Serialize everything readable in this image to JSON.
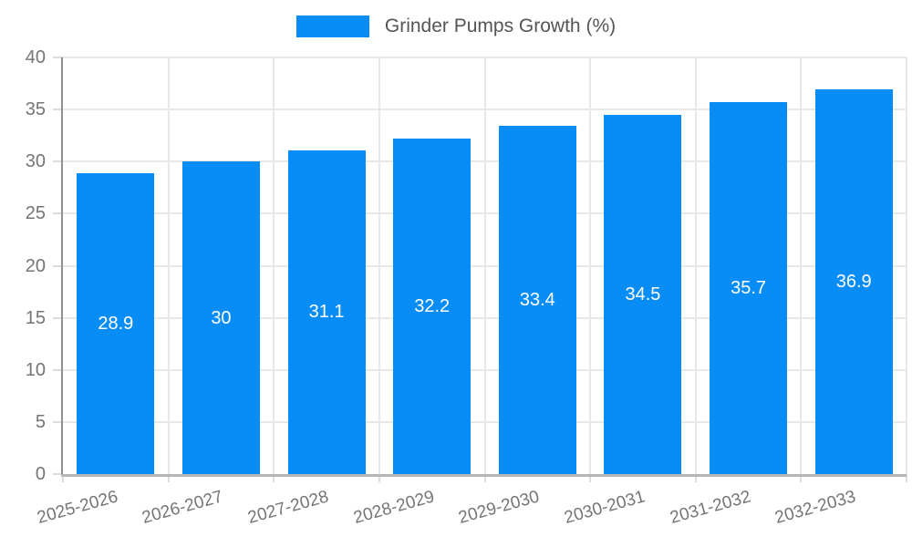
{
  "legend": {
    "label": "Grinder Pumps Growth (%)"
  },
  "chart_data": {
    "type": "bar",
    "title": "Grinder Pumps Growth (%)",
    "categories": [
      "2025-2026",
      "2026-2027",
      "2027-2028",
      "2028-2029",
      "2029-2030",
      "2030-2031",
      "2031-2032",
      "2032-2033"
    ],
    "series": [
      {
        "name": "Grinder Pumps Growth (%)",
        "values": [
          28.9,
          30,
          31.1,
          32.2,
          33.4,
          34.5,
          35.7,
          36.9
        ]
      }
    ],
    "value_labels": [
      "28.9",
      "30",
      "31.1",
      "32.2",
      "33.4",
      "34.5",
      "35.7",
      "36.9"
    ],
    "xlabel": "",
    "ylabel": "",
    "ylim": [
      0,
      40
    ],
    "yticks": [
      0,
      5,
      10,
      15,
      20,
      25,
      30,
      35,
      40
    ],
    "grid": true,
    "legend_position": "top",
    "colors": {
      "bar": "#088CF5",
      "gridline": "#e8e8e8",
      "tick": "#dcdcdc",
      "x_axis_line": "#b6b6b6",
      "y_axis_line": "#909090",
      "axis_text": "#757575",
      "legend_text": "#555555",
      "value_label_text": "#ffffff"
    }
  }
}
